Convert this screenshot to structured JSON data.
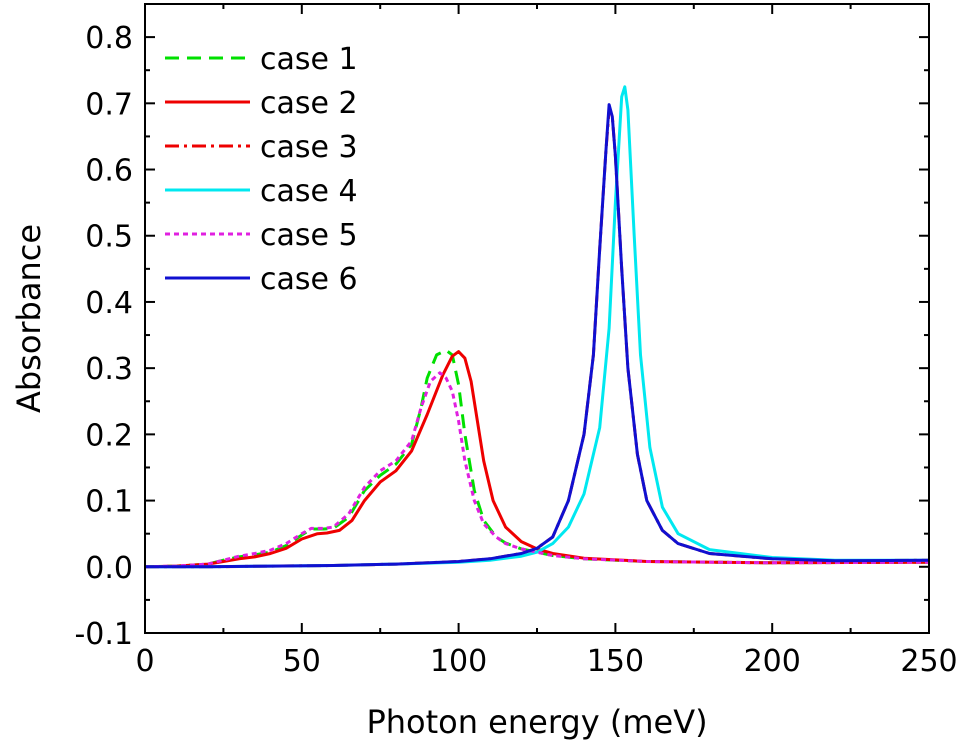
{
  "chart_data": {
    "type": "line",
    "xlabel": "Photon energy (meV)",
    "ylabel": "Absorbance",
    "xlim": [
      0,
      250
    ],
    "ylim": [
      -0.1,
      0.85
    ],
    "x_ticks": [
      0,
      50,
      100,
      150,
      200,
      250
    ],
    "x_tick_labels": [
      "0",
      "50",
      "100",
      "150",
      "200",
      "250"
    ],
    "y_ticks": [
      -0.1,
      0.0,
      0.1,
      0.2,
      0.3,
      0.4,
      0.5,
      0.6,
      0.7,
      0.8
    ],
    "y_tick_labels": [
      "-0.1",
      "0.0",
      "0.1",
      "0.2",
      "0.3",
      "0.4",
      "0.5",
      "0.6",
      "0.7",
      "0.8"
    ],
    "grid": false,
    "legend_position": "top-left",
    "series": [
      {
        "name": "case 1",
        "color": "#00e000",
        "dash": "dashed",
        "points": [
          [
            0,
            0
          ],
          [
            10,
            0.001
          ],
          [
            20,
            0.004
          ],
          [
            25,
            0.01
          ],
          [
            30,
            0.015
          ],
          [
            35,
            0.018
          ],
          [
            40,
            0.022
          ],
          [
            45,
            0.032
          ],
          [
            50,
            0.048
          ],
          [
            53,
            0.057
          ],
          [
            57,
            0.057
          ],
          [
            60,
            0.058
          ],
          [
            65,
            0.075
          ],
          [
            70,
            0.115
          ],
          [
            75,
            0.138
          ],
          [
            80,
            0.155
          ],
          [
            85,
            0.185
          ],
          [
            88,
            0.24
          ],
          [
            90,
            0.285
          ],
          [
            93,
            0.32
          ],
          [
            96,
            0.327
          ],
          [
            98,
            0.32
          ],
          [
            100,
            0.275
          ],
          [
            102,
            0.2
          ],
          [
            105,
            0.115
          ],
          [
            108,
            0.07
          ],
          [
            112,
            0.045
          ],
          [
            115,
            0.036
          ],
          [
            120,
            0.027
          ],
          [
            130,
            0.017
          ],
          [
            140,
            0.012
          ],
          [
            160,
            0.008
          ],
          [
            200,
            0.006
          ],
          [
            250,
            0.007
          ]
        ]
      },
      {
        "name": "case 2",
        "color": "#ee0000",
        "dash": "solid",
        "points": [
          [
            0,
            0
          ],
          [
            10,
            0.001
          ],
          [
            20,
            0.004
          ],
          [
            25,
            0.008
          ],
          [
            30,
            0.012
          ],
          [
            35,
            0.015
          ],
          [
            40,
            0.02
          ],
          [
            45,
            0.028
          ],
          [
            50,
            0.042
          ],
          [
            55,
            0.05
          ],
          [
            58,
            0.051
          ],
          [
            62,
            0.055
          ],
          [
            66,
            0.07
          ],
          [
            70,
            0.1
          ],
          [
            75,
            0.128
          ],
          [
            80,
            0.145
          ],
          [
            85,
            0.175
          ],
          [
            90,
            0.23
          ],
          [
            95,
            0.29
          ],
          [
            98,
            0.318
          ],
          [
            100,
            0.325
          ],
          [
            102,
            0.315
          ],
          [
            104,
            0.28
          ],
          [
            106,
            0.22
          ],
          [
            108,
            0.16
          ],
          [
            111,
            0.1
          ],
          [
            115,
            0.06
          ],
          [
            120,
            0.038
          ],
          [
            125,
            0.027
          ],
          [
            130,
            0.02
          ],
          [
            140,
            0.013
          ],
          [
            160,
            0.008
          ],
          [
            200,
            0.006
          ],
          [
            250,
            0.007
          ]
        ]
      },
      {
        "name": "case 3",
        "color": "#ee0000",
        "dash": "dashdot",
        "points": [
          [
            0,
            0
          ],
          [
            20,
            0.0
          ],
          [
            40,
            0.001
          ],
          [
            60,
            0.002
          ],
          [
            80,
            0.004
          ],
          [
            100,
            0.008
          ],
          [
            110,
            0.012
          ],
          [
            120,
            0.02
          ],
          [
            125,
            0.028
          ],
          [
            130,
            0.045
          ],
          [
            135,
            0.1
          ],
          [
            140,
            0.2
          ],
          [
            143,
            0.32
          ],
          [
            145,
            0.48
          ],
          [
            147,
            0.63
          ],
          [
            148,
            0.69
          ],
          [
            149,
            0.68
          ],
          [
            150,
            0.62
          ],
          [
            152,
            0.45
          ],
          [
            154,
            0.3
          ],
          [
            157,
            0.17
          ],
          [
            160,
            0.1
          ],
          [
            165,
            0.055
          ],
          [
            170,
            0.035
          ],
          [
            180,
            0.02
          ],
          [
            200,
            0.012
          ],
          [
            220,
            0.009
          ],
          [
            250,
            0.01
          ]
        ]
      },
      {
        "name": "case 4",
        "color": "#00e8f0",
        "dash": "solid",
        "points": [
          [
            0,
            0
          ],
          [
            20,
            0.0
          ],
          [
            40,
            0.001
          ],
          [
            60,
            0.002
          ],
          [
            80,
            0.004
          ],
          [
            100,
            0.007
          ],
          [
            110,
            0.01
          ],
          [
            120,
            0.016
          ],
          [
            125,
            0.022
          ],
          [
            130,
            0.035
          ],
          [
            135,
            0.06
          ],
          [
            140,
            0.11
          ],
          [
            145,
            0.21
          ],
          [
            148,
            0.36
          ],
          [
            150,
            0.55
          ],
          [
            152,
            0.71
          ],
          [
            153,
            0.725
          ],
          [
            154,
            0.69
          ],
          [
            156,
            0.5
          ],
          [
            158,
            0.32
          ],
          [
            161,
            0.18
          ],
          [
            165,
            0.09
          ],
          [
            170,
            0.05
          ],
          [
            180,
            0.026
          ],
          [
            200,
            0.014
          ],
          [
            220,
            0.01
          ],
          [
            250,
            0.01
          ]
        ]
      },
      {
        "name": "case 5",
        "color": "#e020e0",
        "dash": "dotted",
        "points": [
          [
            0,
            0
          ],
          [
            10,
            0.001
          ],
          [
            20,
            0.004
          ],
          [
            25,
            0.01
          ],
          [
            30,
            0.016
          ],
          [
            35,
            0.02
          ],
          [
            40,
            0.025
          ],
          [
            45,
            0.035
          ],
          [
            50,
            0.05
          ],
          [
            53,
            0.058
          ],
          [
            57,
            0.058
          ],
          [
            60,
            0.06
          ],
          [
            65,
            0.08
          ],
          [
            70,
            0.12
          ],
          [
            75,
            0.145
          ],
          [
            80,
            0.16
          ],
          [
            85,
            0.19
          ],
          [
            88,
            0.24
          ],
          [
            91,
            0.28
          ],
          [
            94,
            0.293
          ],
          [
            96,
            0.285
          ],
          [
            98,
            0.265
          ],
          [
            100,
            0.22
          ],
          [
            102,
            0.16
          ],
          [
            105,
            0.1
          ],
          [
            108,
            0.065
          ],
          [
            112,
            0.045
          ],
          [
            115,
            0.035
          ],
          [
            120,
            0.027
          ],
          [
            130,
            0.017
          ],
          [
            140,
            0.012
          ],
          [
            160,
            0.008
          ],
          [
            200,
            0.006
          ],
          [
            250,
            0.007
          ]
        ]
      },
      {
        "name": "case 6",
        "color": "#1010d0",
        "dash": "solid",
        "points": [
          [
            0,
            0
          ],
          [
            20,
            0.0
          ],
          [
            40,
            0.001
          ],
          [
            60,
            0.002
          ],
          [
            80,
            0.004
          ],
          [
            100,
            0.008
          ],
          [
            110,
            0.012
          ],
          [
            120,
            0.02
          ],
          [
            125,
            0.028
          ],
          [
            130,
            0.045
          ],
          [
            135,
            0.1
          ],
          [
            140,
            0.2
          ],
          [
            143,
            0.32
          ],
          [
            145,
            0.48
          ],
          [
            147,
            0.63
          ],
          [
            148,
            0.698
          ],
          [
            149,
            0.68
          ],
          [
            150,
            0.62
          ],
          [
            152,
            0.45
          ],
          [
            154,
            0.3
          ],
          [
            157,
            0.17
          ],
          [
            160,
            0.1
          ],
          [
            165,
            0.055
          ],
          [
            170,
            0.035
          ],
          [
            180,
            0.02
          ],
          [
            200,
            0.012
          ],
          [
            220,
            0.009
          ],
          [
            250,
            0.01
          ]
        ]
      }
    ]
  }
}
